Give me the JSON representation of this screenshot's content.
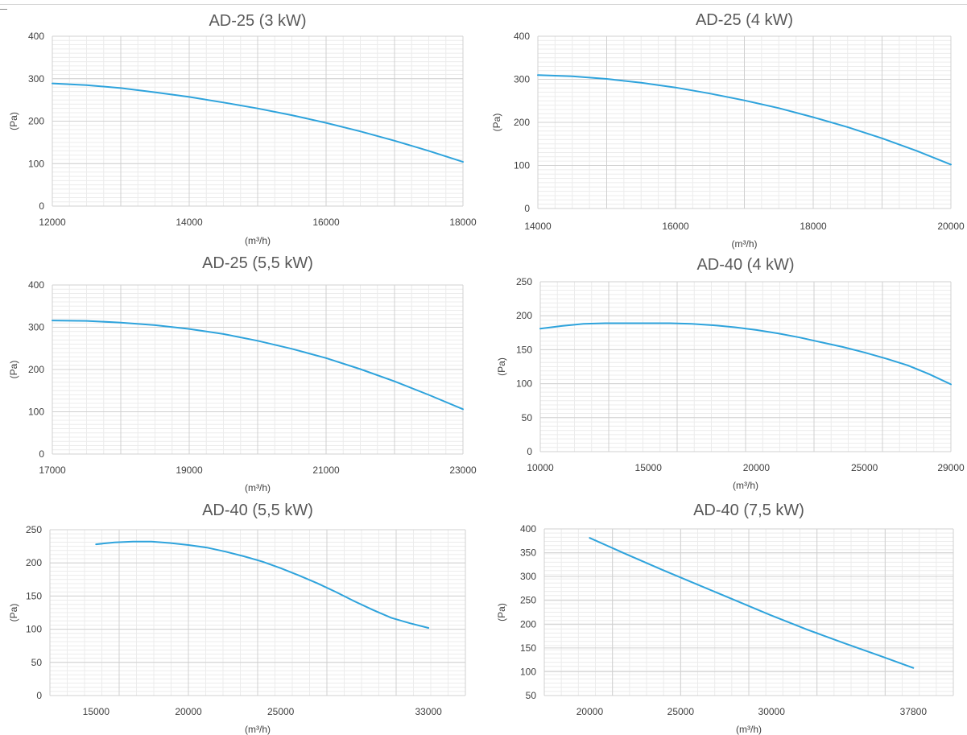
{
  "chart_data": [
    {
      "type": "line",
      "title": "AD-25 (3 kW)",
      "xlabel": "(m³/h)",
      "ylabel": "(Pa)",
      "xlim": [
        12000,
        18000
      ],
      "ylim": [
        0,
        400
      ],
      "xticks": [
        12000,
        14000,
        16000,
        18000
      ],
      "yticks": [
        0,
        100,
        200,
        300,
        400
      ],
      "x": [
        12000,
        12500,
        13000,
        13500,
        14000,
        14500,
        15000,
        15500,
        16000,
        16500,
        17000,
        17500,
        18000
      ],
      "y": [
        289,
        285,
        278,
        268,
        257,
        244,
        230,
        214,
        196,
        176,
        154,
        130,
        104
      ]
    },
    {
      "type": "line",
      "title": "AD-25 (4 kW)",
      "xlabel": "(m³/h)",
      "ylabel": "(Pa)",
      "xlim": [
        14000,
        20000
      ],
      "ylim": [
        0,
        400
      ],
      "xticks": [
        14000,
        16000,
        18000,
        20000
      ],
      "yticks": [
        0,
        100,
        200,
        300,
        400
      ],
      "x": [
        14000,
        14500,
        15000,
        15500,
        16000,
        16500,
        17000,
        17500,
        18000,
        18500,
        19000,
        19500,
        20000
      ],
      "y": [
        310,
        307,
        301,
        292,
        281,
        267,
        251,
        233,
        212,
        189,
        163,
        134,
        102
      ]
    },
    {
      "type": "line",
      "title": "AD-25 (5,5 kW)",
      "xlabel": "(m³/h)",
      "ylabel": "(Pa)",
      "xlim": [
        17000,
        23000
      ],
      "ylim": [
        0,
        400
      ],
      "xticks": [
        17000,
        19000,
        21000,
        23000
      ],
      "yticks": [
        0,
        100,
        200,
        300,
        400
      ],
      "x": [
        17000,
        17500,
        18000,
        18500,
        19000,
        19500,
        20000,
        20500,
        21000,
        21500,
        22000,
        22500,
        23000
      ],
      "y": [
        316,
        315,
        311,
        305,
        296,
        284,
        268,
        249,
        227,
        201,
        172,
        140,
        106
      ]
    },
    {
      "type": "line",
      "title": "AD-40 (4 kW)",
      "xlabel": "(m³/h)",
      "ylabel": "(Pa)",
      "xlim": [
        10000,
        29000
      ],
      "ylim": [
        0,
        250
      ],
      "xticks": [
        10000,
        15000,
        20000,
        25000,
        29000
      ],
      "yticks": [
        0,
        50,
        100,
        150,
        200,
        250
      ],
      "x": [
        10000,
        11000,
        12000,
        13000,
        14000,
        15000,
        16000,
        17000,
        18000,
        19000,
        20000,
        21000,
        22000,
        23000,
        24000,
        25000,
        26000,
        27000,
        28000,
        29000
      ],
      "y": [
        181,
        185,
        188,
        189,
        189,
        189,
        189,
        188,
        186,
        183,
        179,
        174,
        168,
        161,
        154,
        146,
        137,
        127,
        114,
        99
      ]
    },
    {
      "type": "line",
      "title": "AD-40 (5,5 kW)",
      "xlabel": "(m³/h)",
      "ylabel": "(Pa)",
      "xlim": [
        12500,
        35000
      ],
      "ylim": [
        0,
        250
      ],
      "xticks": [
        15000,
        20000,
        25000,
        33000
      ],
      "yticks": [
        0,
        50,
        100,
        150,
        200,
        250
      ],
      "x": [
        15000,
        16000,
        17000,
        18000,
        19000,
        20000,
        21000,
        22000,
        23000,
        24000,
        25000,
        26000,
        27000,
        28000,
        29000,
        30000,
        31000,
        32000,
        33000
      ],
      "y": [
        228,
        231,
        232,
        232,
        230,
        227,
        223,
        217,
        210,
        202,
        192,
        181,
        169,
        156,
        142,
        129,
        117,
        109,
        102
      ]
    },
    {
      "type": "line",
      "title": "AD-40 (7,5 kW)",
      "xlabel": "(m³/h)",
      "ylabel": "(Pa)",
      "xlim": [
        17500,
        40000
      ],
      "ylim": [
        50,
        400
      ],
      "xticks": [
        20000,
        25000,
        30000,
        37800
      ],
      "yticks": [
        50,
        100,
        150,
        200,
        250,
        300,
        350,
        400
      ],
      "x": [
        20000,
        22000,
        24000,
        26000,
        28000,
        30000,
        32000,
        34000,
        36000,
        37800
      ],
      "y": [
        381,
        347,
        314,
        282,
        250,
        218,
        188,
        160,
        133,
        108
      ]
    }
  ]
}
